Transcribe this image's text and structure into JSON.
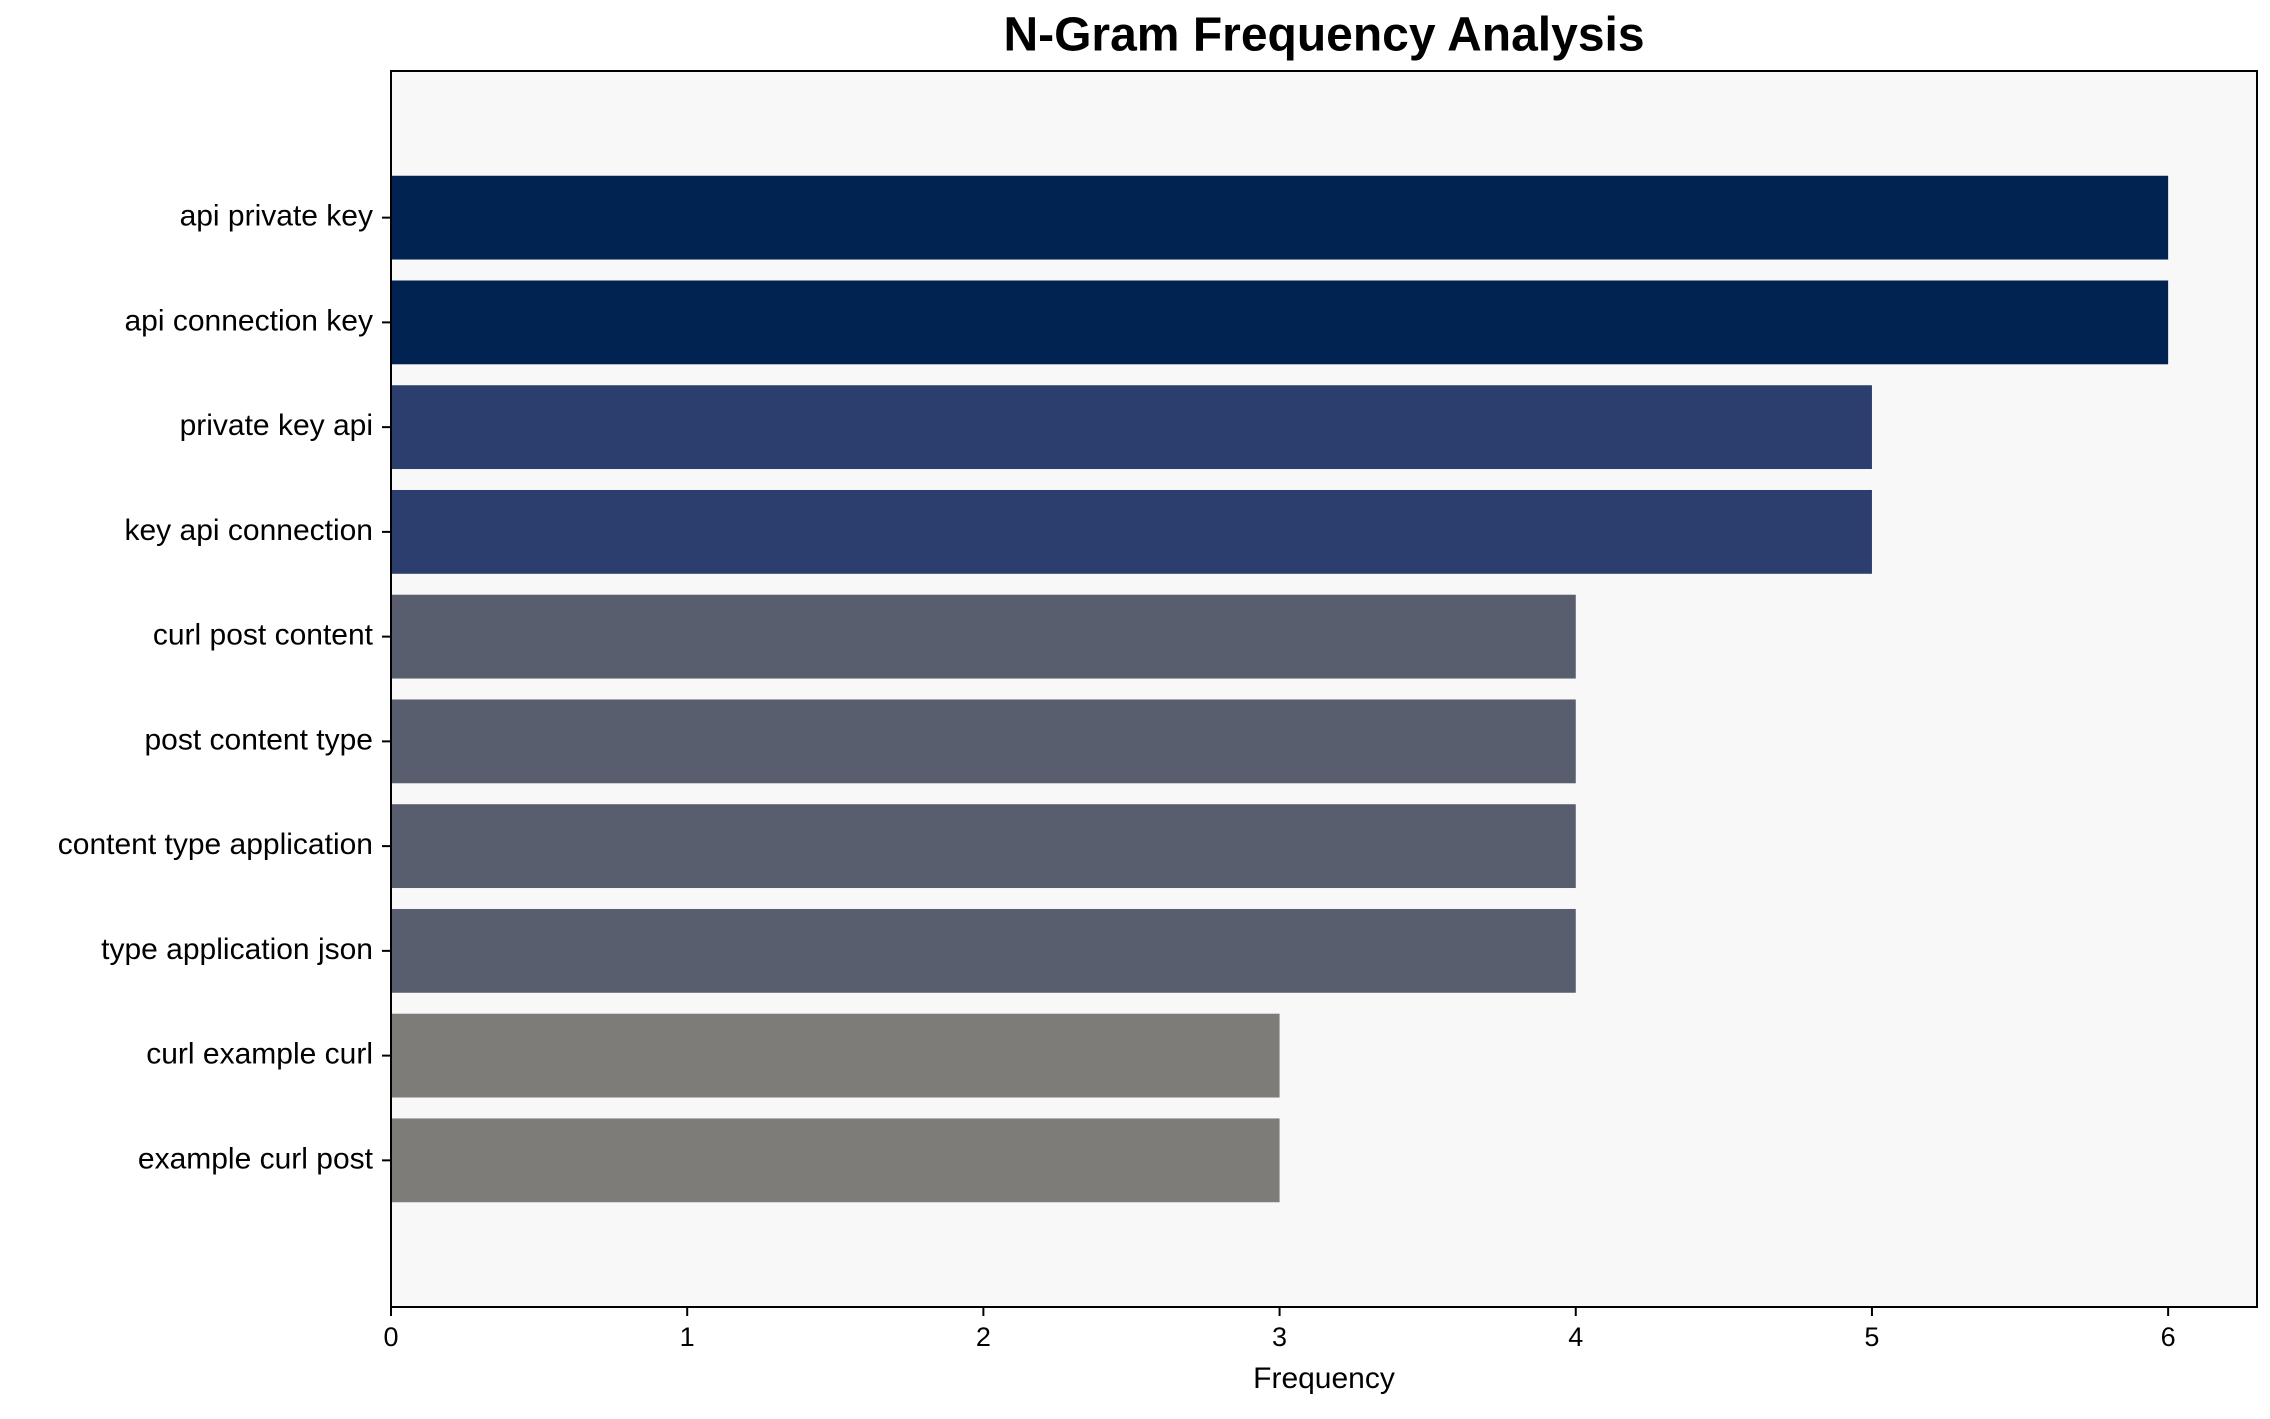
{
  "chart_data": {
    "type": "barh",
    "title": "N-Gram Frequency Analysis",
    "xlabel": "Frequency",
    "categories": [
      "api private key",
      "api connection key",
      "private key api",
      "key api connection",
      "curl post content",
      "post content type",
      "content type application",
      "type application json",
      "curl example curl",
      "example curl post"
    ],
    "values": [
      6,
      6,
      5,
      5,
      4,
      4,
      4,
      4,
      3,
      3
    ],
    "colors": [
      "#012352",
      "#012352",
      "#2c3e6e",
      "#2c3e6e",
      "#585e6e",
      "#585e6e",
      "#585e6e",
      "#585e6e",
      "#7d7c78",
      "#7d7c78"
    ],
    "xlim": [
      0,
      6.3
    ],
    "xticks": [
      0,
      1,
      2,
      3,
      4,
      5,
      6
    ],
    "grid": false
  }
}
